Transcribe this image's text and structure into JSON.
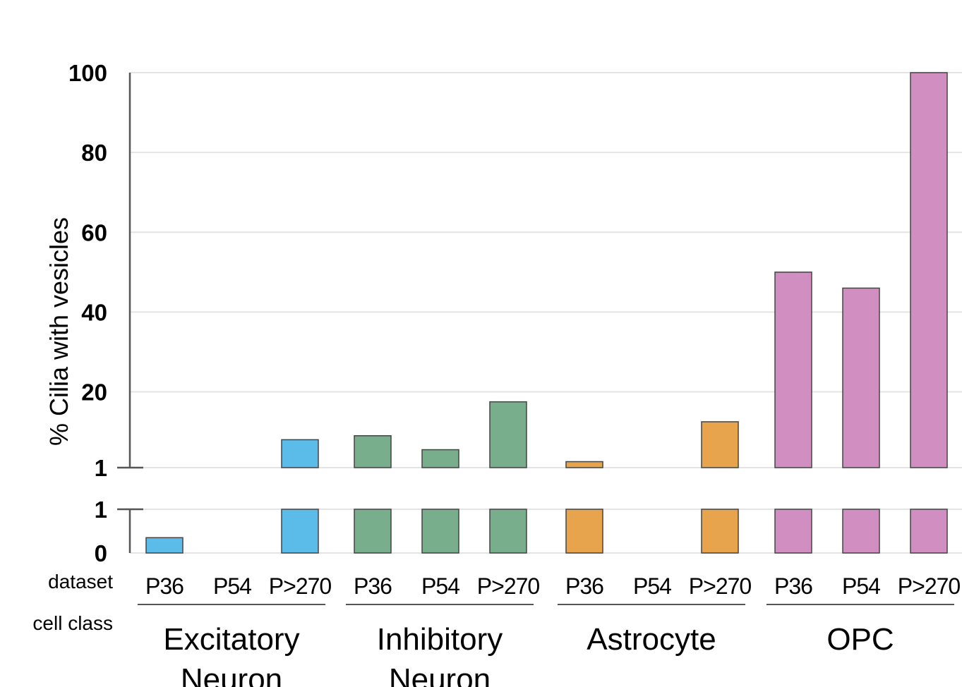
{
  "chart_data": {
    "type": "bar",
    "ylabel": "% Cilia with vesicles",
    "row_labels": {
      "dataset": "dataset",
      "cell_class": "cell class"
    },
    "scale": "broken y-axis: linear 0–1 lower segment, linear 1–100 upper segment",
    "upper_ticks": [
      "100",
      "80",
      "60",
      "40",
      "20",
      "1"
    ],
    "lower_ticks": [
      "1",
      "0"
    ],
    "ylim": [
      0,
      100
    ],
    "groups": [
      {
        "name": "Excitatory Neuron",
        "name_lines": [
          "Excitatory",
          "Neuron"
        ],
        "color": "#5bbcea",
        "categories": [
          "P36",
          "P54",
          "P>270"
        ],
        "values": [
          0.35,
          0,
          8
        ]
      },
      {
        "name": "Inhibitory Neuron",
        "name_lines": [
          "Inhibitory",
          "Neuron"
        ],
        "color": "#78ae8c",
        "categories": [
          "P36",
          "P54",
          "P>270"
        ],
        "values": [
          9,
          5.5,
          17.5
        ]
      },
      {
        "name": "Astrocyte",
        "name_lines": [
          "Astrocyte"
        ],
        "color": "#e8a44d",
        "categories": [
          "P36",
          "P54",
          "P>270"
        ],
        "values": [
          2.5,
          0,
          12.5
        ]
      },
      {
        "name": "OPC",
        "name_lines": [
          "OPC"
        ],
        "color": "#d08fc0",
        "categories": [
          "P36",
          "P54",
          "P>270"
        ],
        "values": [
          50,
          46,
          100
        ]
      }
    ],
    "grid": true
  }
}
